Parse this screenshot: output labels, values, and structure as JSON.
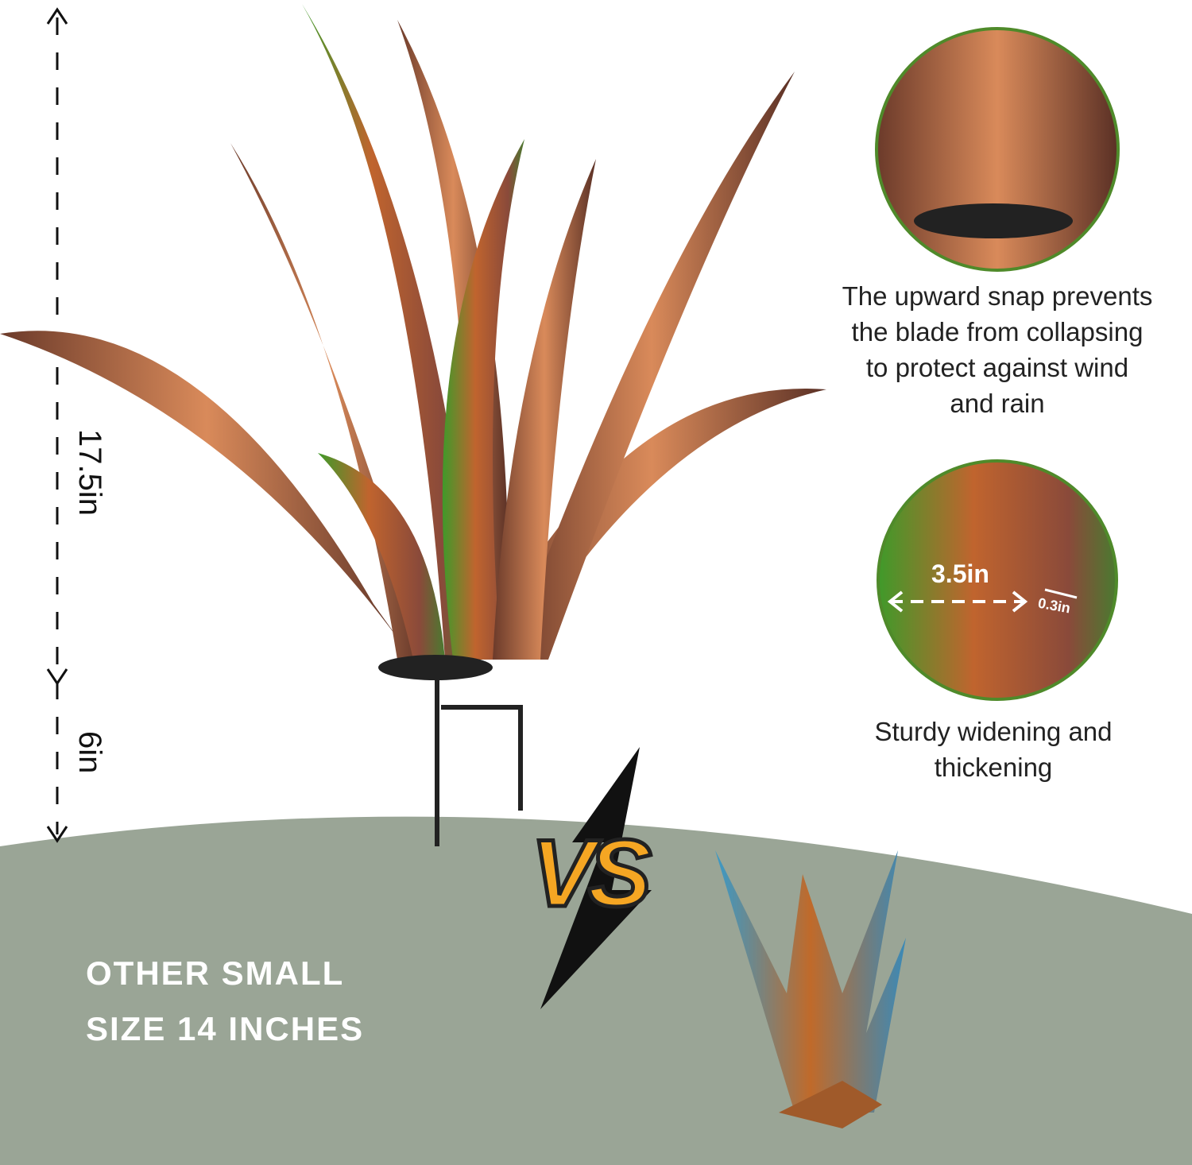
{
  "dimensions": {
    "height_label": "17.5in",
    "stake_label": "6in"
  },
  "callouts": [
    {
      "text_lines": [
        "The upward snap prevents",
        "the blade from collapsing",
        "to protect against wind",
        "and rain"
      ]
    },
    {
      "text_lines": [
        "Sturdy widening and",
        "thickening"
      ]
    }
  ],
  "detail_circle": {
    "width_label": "3.5in",
    "thickness_label": "0.3in"
  },
  "comparison": {
    "vs_label": "VS",
    "other_lines": [
      "OTHER SMALL",
      "SIZE 14 INCHES"
    ]
  },
  "colors": {
    "ground": "#9aa596",
    "circle_border": "#4f8a2a",
    "vs_fill": "#f5a623",
    "copper": "#b5653a",
    "leaf_green": "#3f9a2a"
  }
}
